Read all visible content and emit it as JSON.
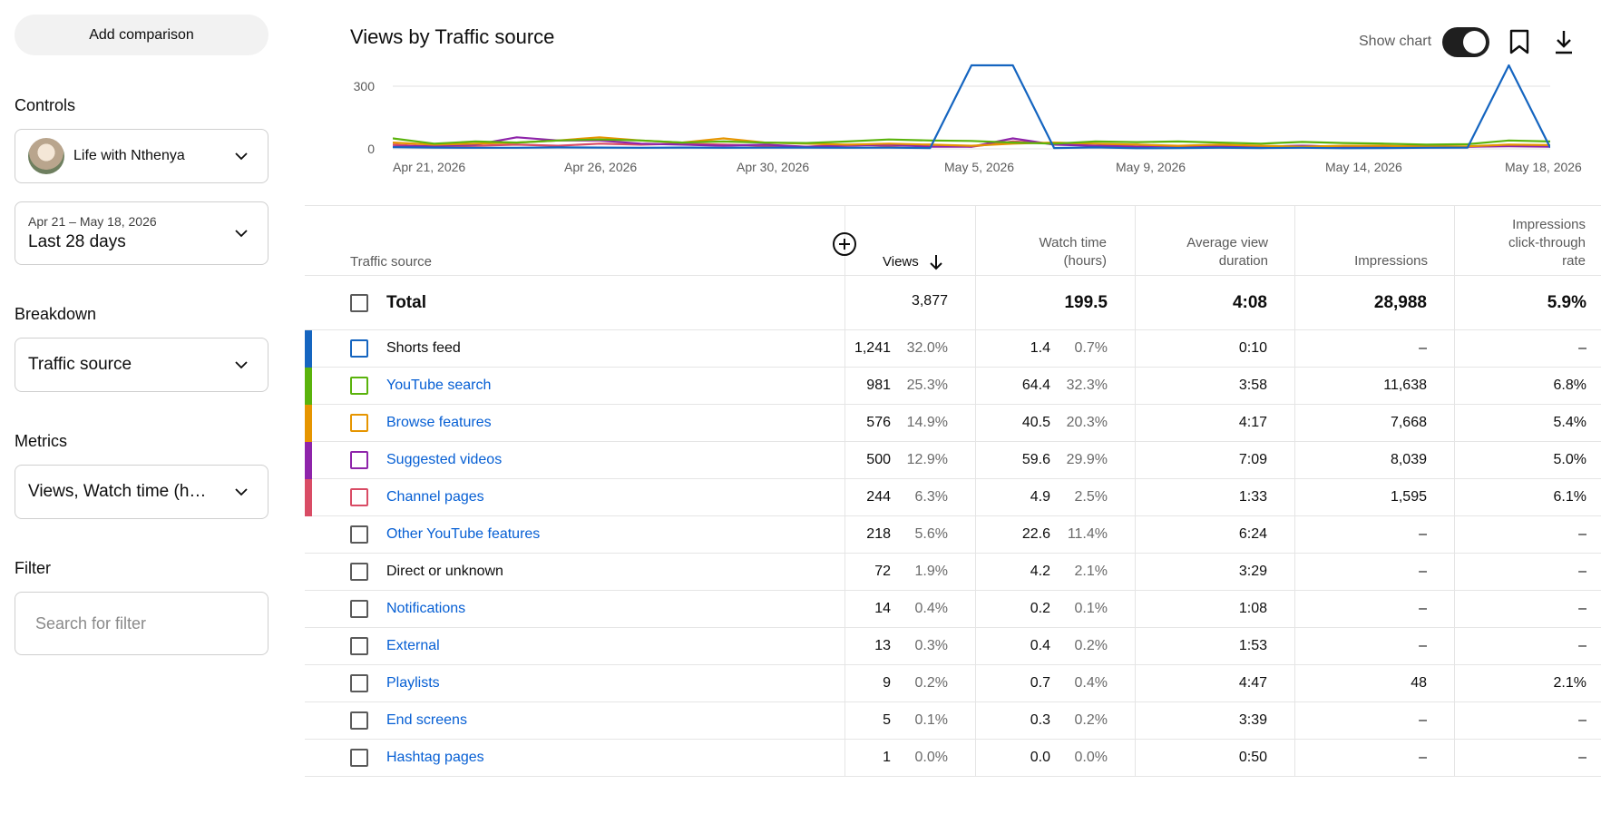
{
  "left_panel": {
    "add_comparison": "Add comparison",
    "controls_title": "Controls",
    "channel": "Life with Nthenya",
    "date_range_sub": "Apr 21 – May 18, 2026",
    "date_range": "Last 28 days",
    "breakdown_title": "Breakdown",
    "breakdown_value": "Traffic source",
    "metrics_title": "Metrics",
    "metrics_value": "Views, Watch time (hours)",
    "filter_title": "Filter",
    "filter_placeholder": "Search for filter"
  },
  "header": {
    "title": "Views by Traffic source",
    "show_chart": "Show chart",
    "show_chart_on": true
  },
  "chart_data": {
    "type": "line",
    "y_ticks": [
      "300",
      "0"
    ],
    "x_ticks": [
      "Apr 21, 2026",
      "Apr 26, 2026",
      "Apr 30, 2026",
      "May 5, 2026",
      "May 9, 2026",
      "May 14, 2026",
      "May 18, 2026"
    ],
    "ylim": [
      0,
      400
    ],
    "grid": true,
    "series": [
      {
        "color": "#1565c0",
        "values": [
          8,
          6,
          5,
          5,
          7,
          6,
          5,
          6,
          5,
          6,
          6,
          5,
          6,
          4,
          400,
          400,
          4,
          7,
          3,
          4,
          5,
          4,
          5,
          3,
          4,
          5,
          6,
          400,
          6
        ]
      },
      {
        "color": "#5ab30c",
        "values": [
          50,
          25,
          35,
          30,
          40,
          45,
          40,
          30,
          35,
          30,
          28,
          35,
          45,
          40,
          38,
          30,
          25,
          35,
          32,
          35,
          30,
          25,
          33,
          28,
          25,
          20,
          22,
          40,
          35
        ]
      },
      {
        "color": "#e69500",
        "values": [
          30,
          20,
          25,
          30,
          40,
          55,
          40,
          30,
          50,
          30,
          25,
          20,
          25,
          20,
          15,
          25,
          30,
          25,
          20,
          15,
          20,
          15,
          10,
          15,
          15,
          10,
          12,
          20,
          18
        ]
      },
      {
        "color": "#8e24aa",
        "values": [
          10,
          15,
          20,
          55,
          40,
          40,
          25,
          20,
          15,
          20,
          10,
          15,
          20,
          10,
          10,
          50,
          20,
          15,
          10,
          15,
          10,
          10,
          15,
          10,
          12,
          8,
          10,
          12,
          10
        ]
      },
      {
        "color": "#d94c65",
        "values": [
          20,
          10,
          15,
          20,
          15,
          25,
          20,
          25,
          20,
          15,
          10,
          20,
          15,
          20,
          10,
          35,
          25,
          15,
          20,
          10,
          15,
          10,
          15,
          10,
          12,
          15,
          10,
          15,
          12
        ]
      }
    ]
  },
  "table": {
    "headers": {
      "source": "Traffic source",
      "views": "Views",
      "watch_time_1": "Watch time",
      "watch_time_2": "(hours)",
      "avd_1": "Average view",
      "avd_2": "duration",
      "impressions": "Impressions",
      "ctr_1": "Impressions",
      "ctr_2": "click-through",
      "ctr_3": "rate"
    },
    "total": {
      "label": "Total",
      "views": "3,877",
      "watch": "199.5",
      "avd": "4:08",
      "impressions": "28,988",
      "ctr": "5.9%"
    },
    "rows": [
      {
        "source": "Shorts feed",
        "link": false,
        "color": "#1565c0",
        "views": "1,241",
        "views_pct": "32.0%",
        "watch": "1.4",
        "watch_pct": "0.7%",
        "avd": "0:10",
        "impressions": "–",
        "ctr": "–"
      },
      {
        "source": "YouTube search",
        "link": true,
        "color": "#5ab30c",
        "views": "981",
        "views_pct": "25.3%",
        "watch": "64.4",
        "watch_pct": "32.3%",
        "avd": "3:58",
        "impressions": "11,638",
        "ctr": "6.8%"
      },
      {
        "source": "Browse features",
        "link": true,
        "color": "#e69500",
        "views": "576",
        "views_pct": "14.9%",
        "watch": "40.5",
        "watch_pct": "20.3%",
        "avd": "4:17",
        "impressions": "7,668",
        "ctr": "5.4%"
      },
      {
        "source": "Suggested videos",
        "link": true,
        "color": "#8e24aa",
        "views": "500",
        "views_pct": "12.9%",
        "watch": "59.6",
        "watch_pct": "29.9%",
        "avd": "7:09",
        "impressions": "8,039",
        "ctr": "5.0%"
      },
      {
        "source": "Channel pages",
        "link": true,
        "color": "#d94c65",
        "views": "244",
        "views_pct": "6.3%",
        "watch": "4.9",
        "watch_pct": "2.5%",
        "avd": "1:33",
        "impressions": "1,595",
        "ctr": "6.1%"
      },
      {
        "source": "Other YouTube features",
        "link": true,
        "color": "",
        "views": "218",
        "views_pct": "5.6%",
        "watch": "22.6",
        "watch_pct": "11.4%",
        "avd": "6:24",
        "impressions": "–",
        "ctr": "–"
      },
      {
        "source": "Direct or unknown",
        "link": false,
        "color": "",
        "views": "72",
        "views_pct": "1.9%",
        "watch": "4.2",
        "watch_pct": "2.1%",
        "avd": "3:29",
        "impressions": "–",
        "ctr": "–"
      },
      {
        "source": "Notifications",
        "link": true,
        "color": "",
        "views": "14",
        "views_pct": "0.4%",
        "watch": "0.2",
        "watch_pct": "0.1%",
        "avd": "1:08",
        "impressions": "–",
        "ctr": "–"
      },
      {
        "source": "External",
        "link": true,
        "color": "",
        "views": "13",
        "views_pct": "0.3%",
        "watch": "0.4",
        "watch_pct": "0.2%",
        "avd": "1:53",
        "impressions": "–",
        "ctr": "–"
      },
      {
        "source": "Playlists",
        "link": true,
        "color": "",
        "views": "9",
        "views_pct": "0.2%",
        "watch": "0.7",
        "watch_pct": "0.4%",
        "avd": "4:47",
        "impressions": "48",
        "ctr": "2.1%"
      },
      {
        "source": "End screens",
        "link": true,
        "color": "",
        "views": "5",
        "views_pct": "0.1%",
        "watch": "0.3",
        "watch_pct": "0.2%",
        "avd": "3:39",
        "impressions": "–",
        "ctr": "–"
      },
      {
        "source": "Hashtag pages",
        "link": true,
        "color": "",
        "views": "1",
        "views_pct": "0.0%",
        "watch": "0.0",
        "watch_pct": "0.0%",
        "avd": "0:50",
        "impressions": "–",
        "ctr": "–"
      }
    ]
  }
}
